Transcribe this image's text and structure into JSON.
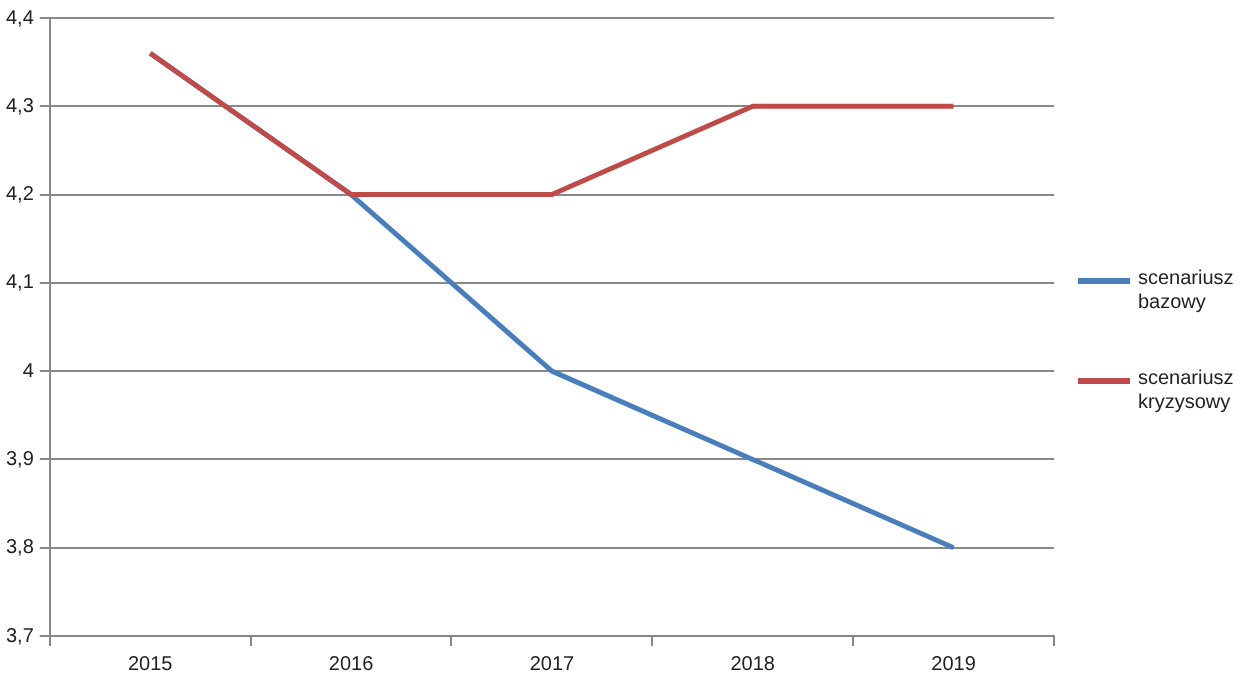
{
  "chart_data": {
    "type": "line",
    "categories": [
      "2015",
      "2016",
      "2017",
      "2018",
      "2019"
    ],
    "series": [
      {
        "name": "scenariusz bazowy",
        "color": "#4a7ebb",
        "values": [
          4.36,
          4.2,
          4.0,
          3.9,
          3.8
        ]
      },
      {
        "name": "scenariusz kryzysowy",
        "color": "#be4b48",
        "values": [
          4.36,
          4.2,
          4.2,
          4.3,
          4.3
        ]
      }
    ],
    "ylim": [
      3.7,
      4.4
    ],
    "yticks": [
      {
        "value": 3.7,
        "label": "3,7"
      },
      {
        "value": 3.8,
        "label": "3,8"
      },
      {
        "value": 3.9,
        "label": "3,9"
      },
      4,
      {
        "value": 4.1,
        "label": "4,1"
      },
      {
        "value": 4.2,
        "label": "4,2"
      },
      {
        "value": 4.3,
        "label": "4,3"
      },
      {
        "value": 4.4,
        "label": "4,4"
      }
    ],
    "grid": "y",
    "legend": "right",
    "marker": "none",
    "line_style": "solid"
  }
}
